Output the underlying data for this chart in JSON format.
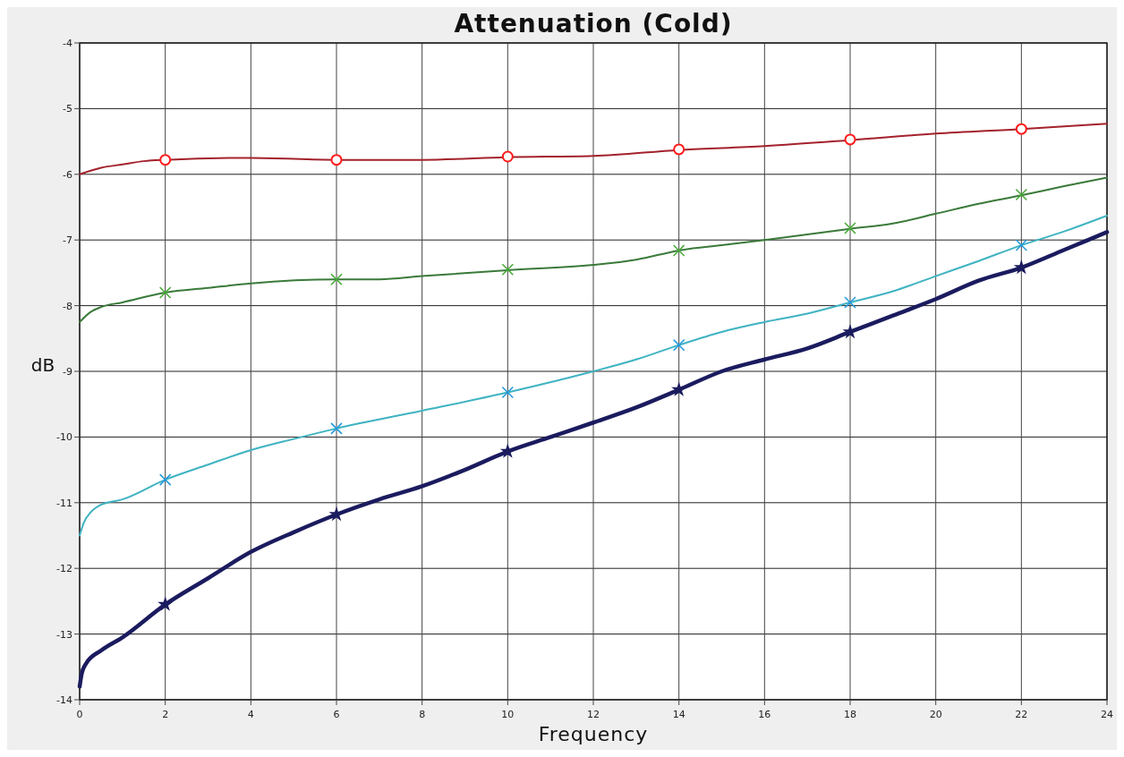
{
  "chart_data": {
    "type": "line",
    "title": "Attenuation (Cold)",
    "xlabel": "Frequency",
    "ylabel": "dB",
    "xlim": [
      0,
      24
    ],
    "ylim": [
      -14,
      -4
    ],
    "xticks": [
      0,
      2,
      4,
      6,
      8,
      10,
      12,
      14,
      16,
      18,
      20,
      22,
      24
    ],
    "yticks": [
      -14,
      -13,
      -12,
      -11,
      -10,
      -9,
      -8,
      -7,
      -6,
      -5,
      -4
    ],
    "grid": true,
    "line_style": "solid",
    "series": [
      {
        "color": "#a3222c",
        "marker": "none",
        "x": [
          0,
          0.5,
          1,
          1.5,
          2,
          4,
          6,
          8,
          10,
          12,
          14,
          16,
          18,
          20,
          22,
          24
        ],
        "values": [
          -6.0,
          -5.9,
          -5.85,
          -5.8,
          -5.78,
          -5.75,
          -5.78,
          -5.78,
          -5.74,
          -5.72,
          -5.63,
          -5.57,
          -5.48,
          -5.38,
          -5.31,
          -5.23
        ]
      },
      {
        "color": "#3a7a3a",
        "marker": "none",
        "x": [
          0,
          0.25,
          0.5,
          1,
          2,
          3,
          4,
          6,
          7,
          8,
          10,
          12,
          13,
          14,
          15,
          16,
          18,
          19,
          20,
          21,
          22,
          23,
          24
        ],
        "values": [
          -8.25,
          -8.1,
          -8.02,
          -7.95,
          -7.8,
          -7.73,
          -7.66,
          -7.6,
          -7.6,
          -7.55,
          -7.46,
          -7.38,
          -7.3,
          -7.16,
          -7.08,
          -7.0,
          -6.83,
          -6.75,
          -6.6,
          -6.45,
          -6.32,
          -6.18,
          -6.05
        ]
      },
      {
        "color": "#3fb3c2",
        "marker": "none",
        "x": [
          0,
          0.1,
          0.25,
          0.5,
          1,
          2,
          3,
          4,
          5,
          6,
          8,
          10,
          12,
          13,
          14,
          15,
          16,
          17,
          18,
          19,
          20,
          21,
          22,
          23,
          24
        ],
        "values": [
          -11.5,
          -11.3,
          -11.15,
          -11.03,
          -10.95,
          -10.65,
          -10.42,
          -10.2,
          -10.03,
          -9.87,
          -9.6,
          -9.32,
          -9.0,
          -8.82,
          -8.6,
          -8.4,
          -8.25,
          -8.12,
          -7.95,
          -7.78,
          -7.55,
          -7.32,
          -7.08,
          -6.87,
          -6.63
        ]
      },
      {
        "color": "#1b1b5f",
        "marker": "none",
        "x": [
          0,
          0.05,
          0.15,
          0.5,
          1,
          2,
          3,
          4,
          5,
          6,
          7,
          8,
          9,
          10,
          11,
          12,
          13,
          14,
          15,
          16,
          17,
          18,
          19,
          20,
          21,
          22,
          23,
          24
        ],
        "values": [
          -13.8,
          -13.6,
          -13.45,
          -13.25,
          -13.05,
          -12.55,
          -12.15,
          -11.75,
          -11.45,
          -11.18,
          -10.95,
          -10.75,
          -10.5,
          -10.22,
          -10.0,
          -9.78,
          -9.55,
          -9.28,
          -9.0,
          -8.82,
          -8.65,
          -8.4,
          -8.15,
          -7.9,
          -7.62,
          -7.42,
          -7.15,
          -6.88
        ]
      },
      {
        "type": "scatter",
        "color": "#ff1a1a",
        "marker": "circle",
        "x": [
          2,
          6,
          10,
          14,
          18,
          22
        ],
        "values": [
          -5.78,
          -5.78,
          -5.73,
          -5.62,
          -5.47,
          -5.31
        ]
      },
      {
        "type": "scatter",
        "color": "#44aa33",
        "marker": "cross",
        "x": [
          2,
          6,
          10,
          14,
          18,
          22
        ],
        "values": [
          -7.8,
          -7.6,
          -7.45,
          -7.16,
          -6.82,
          -6.31
        ]
      },
      {
        "type": "scatter",
        "color": "#2299dd",
        "marker": "cross",
        "x": [
          2,
          6,
          10,
          14,
          18,
          22
        ],
        "values": [
          -10.65,
          -9.87,
          -9.32,
          -8.6,
          -7.95,
          -7.08
        ]
      },
      {
        "type": "scatter",
        "color": "#1b1b5f",
        "marker": "star",
        "x": [
          2,
          6,
          10,
          14,
          18,
          22
        ],
        "values": [
          -12.55,
          -11.18,
          -10.22,
          -9.28,
          -8.4,
          -7.42
        ]
      }
    ]
  }
}
